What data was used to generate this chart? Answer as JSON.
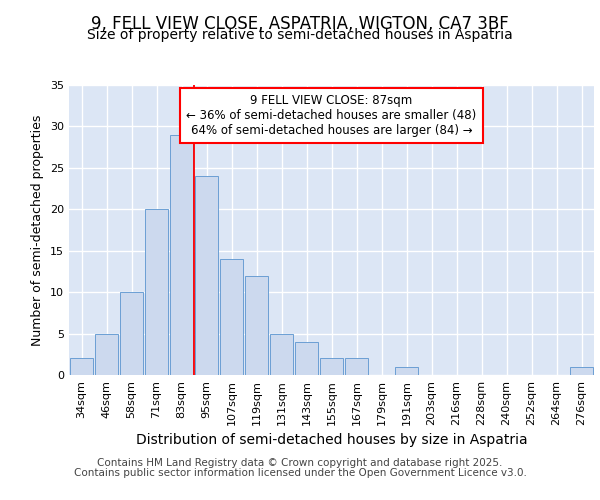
{
  "title_line1": "9, FELL VIEW CLOSE, ASPATRIA, WIGTON, CA7 3BF",
  "title_line2": "Size of property relative to semi-detached houses in Aspatria",
  "xlabel": "Distribution of semi-detached houses by size in Aspatria",
  "ylabel": "Number of semi-detached properties",
  "bar_labels": [
    "34sqm",
    "46sqm",
    "58sqm",
    "71sqm",
    "83sqm",
    "95sqm",
    "107sqm",
    "119sqm",
    "131sqm",
    "143sqm",
    "155sqm",
    "167sqm",
    "179sqm",
    "191sqm",
    "203sqm",
    "216sqm",
    "228sqm",
    "240sqm",
    "252sqm",
    "264sqm",
    "276sqm"
  ],
  "bar_values": [
    2,
    5,
    10,
    20,
    29,
    24,
    14,
    12,
    5,
    4,
    2,
    2,
    0,
    1,
    0,
    0,
    0,
    0,
    0,
    0,
    1
  ],
  "bar_color": "#ccd9ee",
  "bar_edge_color": "#6b9fd4",
  "red_line_x": 4.5,
  "annotation_text": "9 FELL VIEW CLOSE: 87sqm\n← 36% of semi-detached houses are smaller (48)\n64% of semi-detached houses are larger (84) →",
  "annotation_box_color": "white",
  "annotation_box_edge": "red",
  "ylim": [
    0,
    35
  ],
  "yticks": [
    0,
    5,
    10,
    15,
    20,
    25,
    30,
    35
  ],
  "background_color": "#dce6f5",
  "grid_color": "white",
  "footer_line1": "Contains HM Land Registry data © Crown copyright and database right 2025.",
  "footer_line2": "Contains public sector information licensed under the Open Government Licence v3.0.",
  "title_fontsize": 12,
  "subtitle_fontsize": 10,
  "tick_fontsize": 8,
  "ylabel_fontsize": 9,
  "xlabel_fontsize": 10,
  "annot_fontsize": 8.5,
  "footer_fontsize": 7.5
}
